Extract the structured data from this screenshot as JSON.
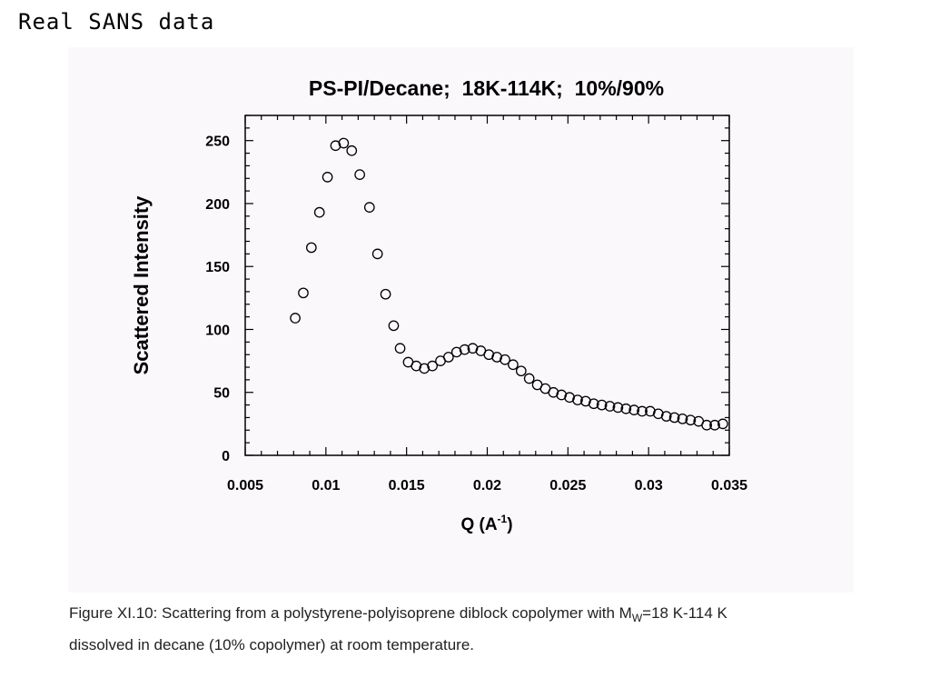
{
  "slide_title": "Real SANS data",
  "caption": {
    "line1_pre": "Figure XI.10: Scattering from a polystyrene-polyisoprene diblock copolymer with M",
    "line1_sub": "W",
    "line1_post": "=18 K-114 K",
    "line2": "dissolved in decane (10% copolymer) at room temperature."
  },
  "chart_data": {
    "type": "scatter",
    "title": "PS-PI/Decane;  18K-114K;  10%/90%",
    "xlabel": "Q (A",
    "xlabel_sup": "-1",
    "xlabel_close": ")",
    "ylabel": "Scattered  Intensity",
    "xlim": [
      0.005,
      0.035
    ],
    "ylim": [
      0,
      270
    ],
    "xticks": [
      0.005,
      0.01,
      0.015,
      0.02,
      0.025,
      0.03,
      0.035
    ],
    "xtick_labels": [
      "0.005",
      "0.01",
      "0.015",
      "0.02",
      "0.025",
      "0.03",
      "0.035"
    ],
    "yticks": [
      0,
      50,
      100,
      150,
      200,
      250
    ],
    "ytick_labels": [
      "0",
      "50",
      "100",
      "150",
      "200",
      "250"
    ],
    "marker": "open-circle",
    "grid": false,
    "series": [
      {
        "points": [
          [
            0.0081,
            109
          ],
          [
            0.0086,
            129
          ],
          [
            0.0091,
            165
          ],
          [
            0.0096,
            193
          ],
          [
            0.0101,
            221
          ],
          [
            0.0106,
            246
          ],
          [
            0.0111,
            248
          ],
          [
            0.0116,
            242
          ],
          [
            0.0121,
            223
          ],
          [
            0.0127,
            197
          ],
          [
            0.0132,
            160
          ],
          [
            0.0137,
            128
          ],
          [
            0.0142,
            103
          ],
          [
            0.0146,
            85
          ],
          [
            0.0151,
            74
          ],
          [
            0.0156,
            71
          ],
          [
            0.0161,
            69
          ],
          [
            0.0166,
            71
          ],
          [
            0.0171,
            75
          ],
          [
            0.0176,
            78
          ],
          [
            0.0181,
            82
          ],
          [
            0.0186,
            84
          ],
          [
            0.0191,
            85
          ],
          [
            0.0196,
            83
          ],
          [
            0.0201,
            80
          ],
          [
            0.0206,
            78
          ],
          [
            0.0211,
            76
          ],
          [
            0.0216,
            72
          ],
          [
            0.0221,
            67
          ],
          [
            0.0226,
            61
          ],
          [
            0.0231,
            56
          ],
          [
            0.0236,
            53
          ],
          [
            0.0241,
            50
          ],
          [
            0.0246,
            48
          ],
          [
            0.0251,
            46
          ],
          [
            0.0256,
            44
          ],
          [
            0.0261,
            43
          ],
          [
            0.0266,
            41
          ],
          [
            0.0271,
            40
          ],
          [
            0.0276,
            39
          ],
          [
            0.0281,
            38
          ],
          [
            0.0286,
            37
          ],
          [
            0.0291,
            36
          ],
          [
            0.0296,
            35
          ],
          [
            0.0301,
            35
          ],
          [
            0.0306,
            33
          ],
          [
            0.0311,
            31
          ],
          [
            0.0316,
            30
          ],
          [
            0.0321,
            29
          ],
          [
            0.0326,
            28
          ],
          [
            0.0331,
            27
          ],
          [
            0.0336,
            24
          ],
          [
            0.0341,
            24
          ],
          [
            0.0346,
            25
          ]
        ]
      }
    ]
  }
}
